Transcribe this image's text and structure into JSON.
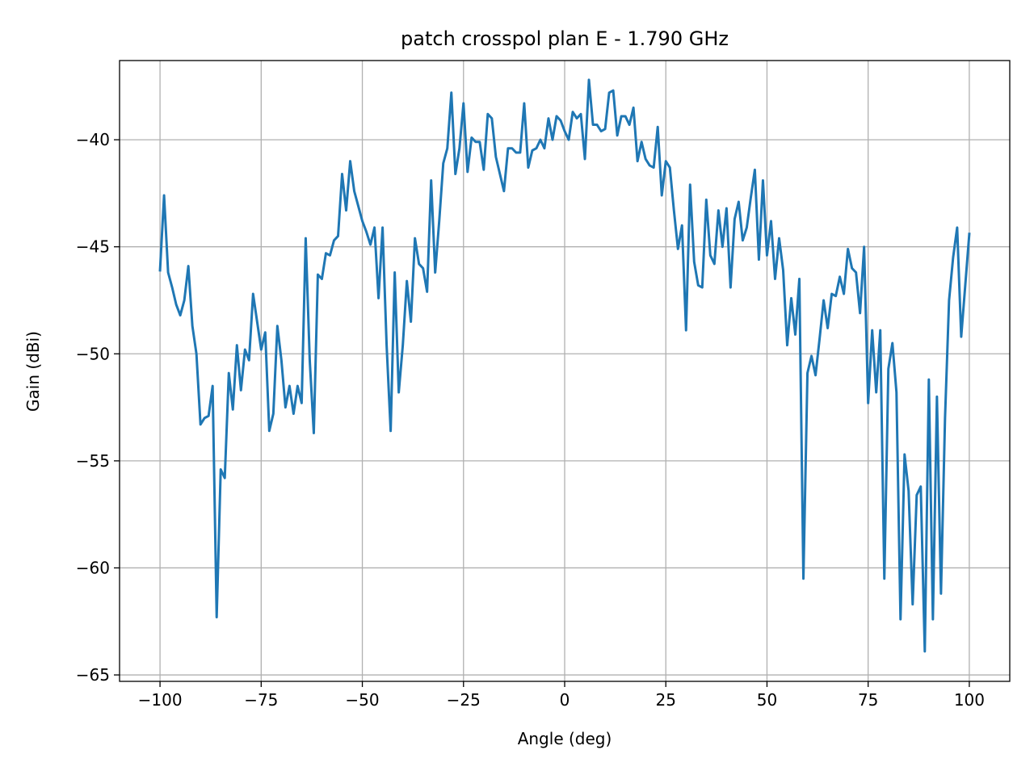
{
  "chart_data": {
    "type": "line",
    "title": "patch crosspol plan E - 1.790 GHz",
    "xlabel": "Angle (deg)",
    "ylabel": "Gain (dBi)",
    "xlim": [
      -110,
      110
    ],
    "ylim": [
      -65.3,
      -36.3
    ],
    "grid": true,
    "x_ticks": [
      -100,
      -75,
      -50,
      -25,
      0,
      25,
      50,
      75,
      100
    ],
    "x_tick_labels": [
      "−100",
      "−75",
      "−50",
      "−25",
      "0",
      "25",
      "50",
      "75",
      "100"
    ],
    "y_ticks": [
      -65,
      -60,
      -55,
      -50,
      -45,
      -40
    ],
    "y_tick_labels": [
      "−65",
      "−60",
      "−55",
      "−50",
      "−45",
      "−40"
    ],
    "series": [
      {
        "color": "#1f77b4",
        "x": [
          -100,
          -99,
          -98,
          -97,
          -96,
          -95,
          -94,
          -93,
          -92,
          -91,
          -90,
          -89,
          -88,
          -87,
          -86,
          -85,
          -84,
          -83,
          -82,
          -81,
          -80,
          -79,
          -78,
          -77,
          -76,
          -75,
          -74,
          -73,
          -72,
          -71,
          -70,
          -69,
          -68,
          -67,
          -66,
          -65,
          -64,
          -63,
          -62,
          -61,
          -60,
          -59,
          -58,
          -57,
          -56,
          -55,
          -54,
          -53,
          -52,
          -51,
          -50,
          -49,
          -48,
          -47,
          -46,
          -45,
          -44,
          -43,
          -42,
          -41,
          -40,
          -39,
          -38,
          -37,
          -36,
          -35,
          -34,
          -33,
          -32,
          -31,
          -30,
          -29,
          -28,
          -27,
          -26,
          -25,
          -24,
          -23,
          -22,
          -21,
          -20,
          -19,
          -18,
          -17,
          -16,
          -15,
          -14,
          -13,
          -12,
          -11,
          -10,
          -9,
          -8,
          -7,
          -6,
          -5,
          -4,
          -3,
          -2,
          -1,
          0,
          1,
          2,
          3,
          4,
          5,
          6,
          7,
          8,
          9,
          10,
          11,
          12,
          13,
          14,
          15,
          16,
          17,
          18,
          19,
          20,
          21,
          22,
          23,
          24,
          25,
          26,
          27,
          28,
          29,
          30,
          31,
          32,
          33,
          34,
          35,
          36,
          37,
          38,
          39,
          40,
          41,
          42,
          43,
          44,
          45,
          46,
          47,
          48,
          49,
          50,
          51,
          52,
          53,
          54,
          55,
          56,
          57,
          58,
          59,
          60,
          61,
          62,
          63,
          64,
          65,
          66,
          67,
          68,
          69,
          70,
          71,
          72,
          73,
          74,
          75,
          76,
          77,
          78,
          79,
          80,
          81,
          82,
          83,
          84,
          85,
          86,
          87,
          88,
          89,
          90,
          91,
          92,
          93,
          94,
          95,
          96,
          97,
          98,
          99,
          100
        ],
        "y": [
          -46.1,
          -42.6,
          -46.2,
          -46.9,
          -47.7,
          -48.2,
          -47.5,
          -45.9,
          -48.7,
          -50.0,
          -53.3,
          -53.0,
          -52.9,
          -51.5,
          -62.3,
          -55.4,
          -55.8,
          -50.9,
          -52.6,
          -49.6,
          -51.7,
          -49.8,
          -50.3,
          -47.2,
          -48.5,
          -49.8,
          -49.0,
          -53.6,
          -52.8,
          -48.7,
          -50.3,
          -52.5,
          -51.5,
          -52.8,
          -51.5,
          -52.3,
          -44.6,
          -50.3,
          -53.7,
          -46.3,
          -46.5,
          -45.3,
          -45.4,
          -44.7,
          -44.5,
          -41.6,
          -43.3,
          -41.0,
          -42.4,
          -43.1,
          -43.8,
          -44.3,
          -44.9,
          -44.1,
          -47.4,
          -44.1,
          -49.6,
          -53.6,
          -46.2,
          -51.8,
          -49.6,
          -46.6,
          -48.5,
          -44.6,
          -45.8,
          -46.0,
          -47.1,
          -41.9,
          -46.2,
          -43.8,
          -41.1,
          -40.4,
          -37.8,
          -41.6,
          -40.4,
          -38.3,
          -41.5,
          -39.9,
          -40.1,
          -40.1,
          -41.4,
          -38.8,
          -39.0,
          -40.8,
          -41.6,
          -42.4,
          -40.4,
          -40.4,
          -40.6,
          -40.6,
          -38.3,
          -41.3,
          -40.5,
          -40.4,
          -40.0,
          -40.4,
          -39.0,
          -40.0,
          -38.9,
          -39.1,
          -39.6,
          -40.0,
          -38.7,
          -39.0,
          -38.8,
          -40.9,
          -37.2,
          -39.3,
          -39.3,
          -39.6,
          -39.5,
          -37.8,
          -37.7,
          -39.8,
          -38.9,
          -38.9,
          -39.3,
          -38.5,
          -41.0,
          -40.1,
          -40.9,
          -41.2,
          -41.3,
          -39.4,
          -42.6,
          -41.0,
          -41.3,
          -43.3,
          -45.1,
          -44.0,
          -48.9,
          -42.1,
          -45.7,
          -46.8,
          -46.9,
          -42.8,
          -45.4,
          -45.8,
          -43.3,
          -45.0,
          -43.2,
          -46.9,
          -43.7,
          -42.9,
          -44.7,
          -44.1,
          -42.7,
          -41.4,
          -45.6,
          -41.9,
          -45.4,
          -43.8,
          -46.5,
          -44.6,
          -46.1,
          -49.6,
          -47.4,
          -49.1,
          -46.5,
          -60.5,
          -50.9,
          -50.1,
          -51.0,
          -49.3,
          -47.5,
          -48.8,
          -47.2,
          -47.3,
          -46.4,
          -47.2,
          -45.1,
          -46.0,
          -46.2,
          -48.1,
          -45.0,
          -52.3,
          -48.9,
          -51.8,
          -48.9,
          -60.5,
          -50.7,
          -49.5,
          -51.8,
          -62.4,
          -54.7,
          -56.4,
          -61.7,
          -56.6,
          -56.2,
          -63.9,
          -51.2,
          -62.4,
          -52.0,
          -61.2,
          -53.0,
          -47.5,
          -45.5,
          -44.1,
          -49.2,
          -46.8,
          -44.4
        ]
      }
    ]
  }
}
